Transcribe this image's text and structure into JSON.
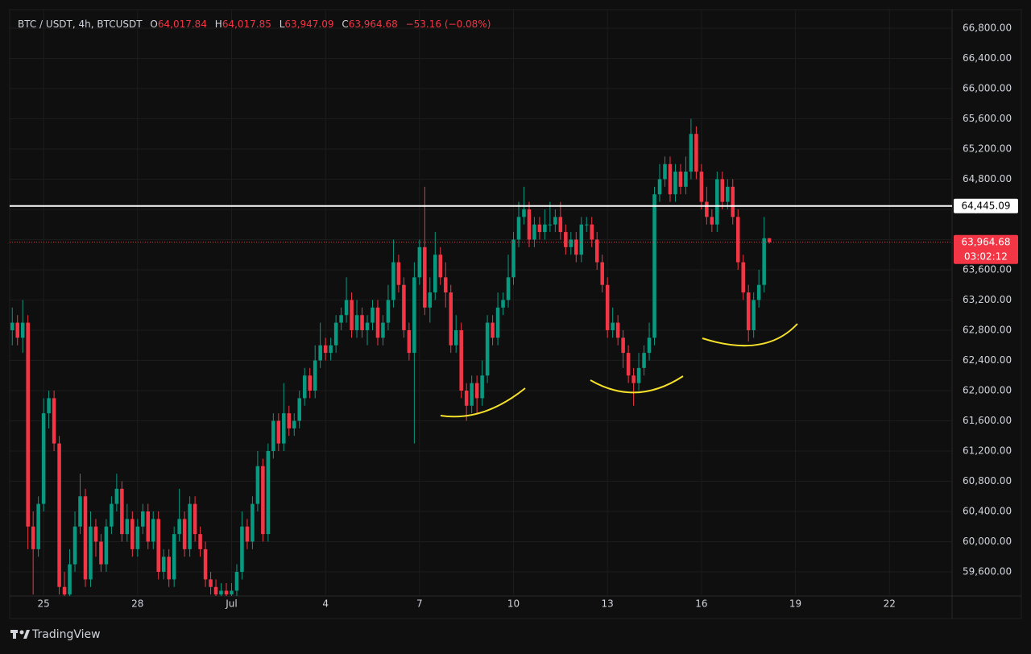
{
  "chart_data": {
    "type": "candlestick",
    "header": {
      "symbol": "BTC / USDT, 4h, BTCUSDT",
      "o_label": "O",
      "o": "64,017.84",
      "h_label": "H",
      "h": "64,017.85",
      "l_label": "L",
      "l": "63,947.09",
      "c_label": "C",
      "c": "63,964.68",
      "change": "−53.16 (−0.08%)"
    },
    "up_color": "#089981",
    "down_color": "#f23645",
    "open": [
      62800,
      62900,
      62700,
      62900,
      60200,
      59900,
      60500,
      61700,
      61900,
      61300,
      59400,
      59300,
      59700,
      60200,
      60600,
      59500,
      60200,
      60000,
      59700,
      60200,
      60500,
      60700,
      60100,
      60300,
      59900,
      60200,
      60400,
      60000,
      60300,
      59600,
      59800,
      59500,
      60100,
      60300,
      59900,
      60500,
      60100,
      59900,
      59500,
      59400,
      59300,
      59350,
      59300,
      59350,
      59600,
      60200,
      60000,
      60500,
      61000,
      60100,
      61200,
      61600,
      61300,
      61700,
      61500,
      61600,
      61900,
      62200,
      62000,
      62400,
      62600,
      62500,
      62600,
      62900,
      63000,
      63200,
      62800,
      63000,
      62800,
      62900,
      63100,
      62700,
      62900,
      63200,
      63700,
      63400,
      62800,
      62500,
      63500,
      63900,
      63100,
      63300,
      63800,
      63500,
      63300,
      62600,
      62800,
      62000,
      61800,
      62100,
      61900,
      62200,
      62900,
      62700,
      63100,
      63200,
      63500,
      64000,
      64300,
      64400,
      64000,
      64200,
      64100,
      64200,
      64200,
      64300,
      64100,
      63900,
      64000,
      63800,
      64200,
      64200,
      64000,
      63700,
      63400,
      62800,
      62900,
      62700,
      62500,
      62200,
      62100,
      62300,
      62500,
      62700,
      64600,
      64800,
      65000,
      64600,
      64900,
      64700,
      64900,
      65400,
      64900,
      64500,
      64300,
      64200,
      64800,
      64500,
      64700,
      64300,
      63700,
      63300,
      62800,
      63200,
      63400,
      64017.84
    ],
    "high": [
      63100,
      63000,
      63200,
      63000,
      60400,
      60600,
      61900,
      62000,
      62000,
      61400,
      59600,
      59900,
      60400,
      60900,
      60700,
      60400,
      60300,
      60100,
      60300,
      60600,
      60900,
      60800,
      60500,
      60400,
      60300,
      60500,
      60500,
      60400,
      60400,
      59900,
      59900,
      60200,
      60700,
      60400,
      60600,
      60600,
      60200,
      60000,
      59600,
      59500,
      59450,
      59450,
      59450,
      59700,
      60400,
      60300,
      60600,
      61200,
      61100,
      61300,
      61700,
      61700,
      62100,
      61800,
      61700,
      62000,
      62300,
      62300,
      62600,
      62900,
      62700,
      62700,
      63000,
      63100,
      63500,
      63300,
      63200,
      63100,
      63000,
      63200,
      63200,
      63000,
      63400,
      64000,
      63800,
      63500,
      62900,
      63700,
      64000,
      64700,
      63500,
      64100,
      63900,
      63700,
      63400,
      63000,
      62900,
      62100,
      62200,
      62200,
      62400,
      63000,
      63000,
      63300,
      63300,
      63800,
      64100,
      64500,
      64700,
      64500,
      64300,
      64300,
      64400,
      64500,
      64400,
      64500,
      64200,
      64100,
      64100,
      64300,
      64300,
      64300,
      64100,
      63800,
      63500,
      63100,
      63000,
      62800,
      62600,
      62300,
      62500,
      62600,
      62900,
      64700,
      65000,
      65100,
      65100,
      65000,
      65000,
      65100,
      65600,
      65500,
      65000,
      64700,
      64400,
      64900,
      64900,
      64800,
      64800,
      64400,
      63800,
      63400,
      63300,
      63600,
      64300,
      64017.85
    ],
    "low": [
      62600,
      62600,
      62500,
      59900,
      59300,
      59800,
      60400,
      61500,
      61200,
      59300,
      59200,
      59200,
      59600,
      60100,
      59400,
      59400,
      59800,
      59600,
      59600,
      60100,
      60400,
      60000,
      60000,
      59800,
      59800,
      60100,
      59900,
      59900,
      59500,
      59500,
      59400,
      59400,
      60000,
      59800,
      59800,
      60000,
      59800,
      59400,
      59300,
      59200,
      59250,
      59200,
      59200,
      59250,
      59500,
      59900,
      59900,
      60400,
      60000,
      60000,
      61100,
      61200,
      61200,
      61400,
      61400,
      61500,
      61800,
      61900,
      61900,
      62300,
      62400,
      62400,
      62500,
      62800,
      62900,
      62700,
      62700,
      62700,
      62600,
      62800,
      62600,
      62600,
      62800,
      63100,
      63300,
      62700,
      62400,
      61300,
      63400,
      63000,
      62900,
      63200,
      63400,
      63100,
      62500,
      62500,
      61900,
      61600,
      61700,
      61700,
      61800,
      62100,
      62600,
      62600,
      63000,
      63100,
      63400,
      63900,
      64200,
      63900,
      63900,
      64000,
      64000,
      64100,
      64100,
      64000,
      63800,
      63800,
      63700,
      63700,
      64100,
      63900,
      63600,
      63300,
      62700,
      62700,
      62600,
      62300,
      62100,
      61800,
      62000,
      62200,
      62400,
      62600,
      64500,
      64700,
      64500,
      64500,
      64600,
      64600,
      64800,
      64800,
      64400,
      64200,
      64100,
      64100,
      64400,
      64400,
      64200,
      63600,
      63200,
      62650,
      62700,
      63100,
      63300,
      63947.09
    ],
    "close": [
      62900,
      62700,
      62900,
      60200,
      59900,
      60500,
      61700,
      61900,
      61300,
      59400,
      59300,
      59700,
      60200,
      60600,
      59500,
      60200,
      60000,
      59700,
      60200,
      60500,
      60700,
      60100,
      60300,
      59900,
      60200,
      60400,
      60000,
      60300,
      59600,
      59800,
      59500,
      60100,
      60300,
      59900,
      60500,
      60100,
      59900,
      59500,
      59400,
      59300,
      59350,
      59300,
      59350,
      59600,
      60200,
      60000,
      60500,
      61000,
      60100,
      61200,
      61600,
      61300,
      61700,
      61500,
      61600,
      61900,
      62200,
      62000,
      62400,
      62600,
      62500,
      62600,
      62900,
      63000,
      63200,
      62800,
      63000,
      62800,
      62900,
      63100,
      62700,
      62900,
      63200,
      63700,
      63400,
      62800,
      62500,
      63500,
      63900,
      63100,
      63300,
      63800,
      63500,
      63300,
      62600,
      62800,
      62000,
      61800,
      62100,
      61900,
      62200,
      62900,
      62700,
      63100,
      63200,
      63500,
      64000,
      64300,
      64400,
      64000,
      64200,
      64100,
      64200,
      64200,
      64300,
      64100,
      63900,
      64000,
      63800,
      64200,
      64200,
      64000,
      63700,
      63400,
      62800,
      62900,
      62700,
      62500,
      62200,
      62100,
      62300,
      62500,
      62700,
      64600,
      64800,
      65000,
      64600,
      64900,
      64700,
      64900,
      65400,
      64900,
      64500,
      64300,
      64200,
      64800,
      64500,
      64700,
      64300,
      63700,
      63300,
      62800,
      63200,
      63400,
      64017.84,
      63964.68
    ],
    "xlim": [
      -0.5,
      180
    ],
    "xticks": [
      {
        "value": 6,
        "label": "25"
      },
      {
        "value": 24,
        "label": "28"
      },
      {
        "value": 42,
        "label": "Jul"
      },
      {
        "value": 60,
        "label": "4"
      },
      {
        "value": 78,
        "label": "7"
      },
      {
        "value": 96,
        "label": "10"
      },
      {
        "value": 114,
        "label": "13"
      },
      {
        "value": 132,
        "label": "16"
      },
      {
        "value": 150,
        "label": "19"
      },
      {
        "value": 168,
        "label": "22"
      }
    ],
    "ylim": [
      59280,
      67045
    ],
    "yticks": [
      {
        "value": 59600,
        "label": "59,600.00"
      },
      {
        "value": 60000,
        "label": "60,000.00"
      },
      {
        "value": 60400,
        "label": "60,400.00"
      },
      {
        "value": 60800,
        "label": "60,800.00"
      },
      {
        "value": 61200,
        "label": "61,200.00"
      },
      {
        "value": 61600,
        "label": "61,600.00"
      },
      {
        "value": 62000,
        "label": "62,000.00"
      },
      {
        "value": 62400,
        "label": "62,400.00"
      },
      {
        "value": 62800,
        "label": "62,800.00"
      },
      {
        "value": 63200,
        "label": "63,200.00"
      },
      {
        "value": 63600,
        "label": "63,600.00"
      },
      {
        "value": 64000,
        "label": "64,000.00"
      },
      {
        "value": 64400,
        "label": "64,400.00"
      },
      {
        "value": 64800,
        "label": "64,800.00"
      },
      {
        "value": 65200,
        "label": "65,200.00"
      },
      {
        "value": 65600,
        "label": "65,600.00"
      },
      {
        "value": 66000,
        "label": "66,000.00"
      },
      {
        "value": 66400,
        "label": "66,400.00"
      },
      {
        "value": 66800,
        "label": "66,800.00"
      }
    ],
    "grid": true,
    "hline": {
      "value": 64445.09,
      "label": "64,445.09",
      "color": "#ffffff"
    },
    "last_price": {
      "value": 63964.68,
      "label": "63,964.68",
      "countdown": "03:02:12"
    },
    "watermark": "TradingView"
  }
}
